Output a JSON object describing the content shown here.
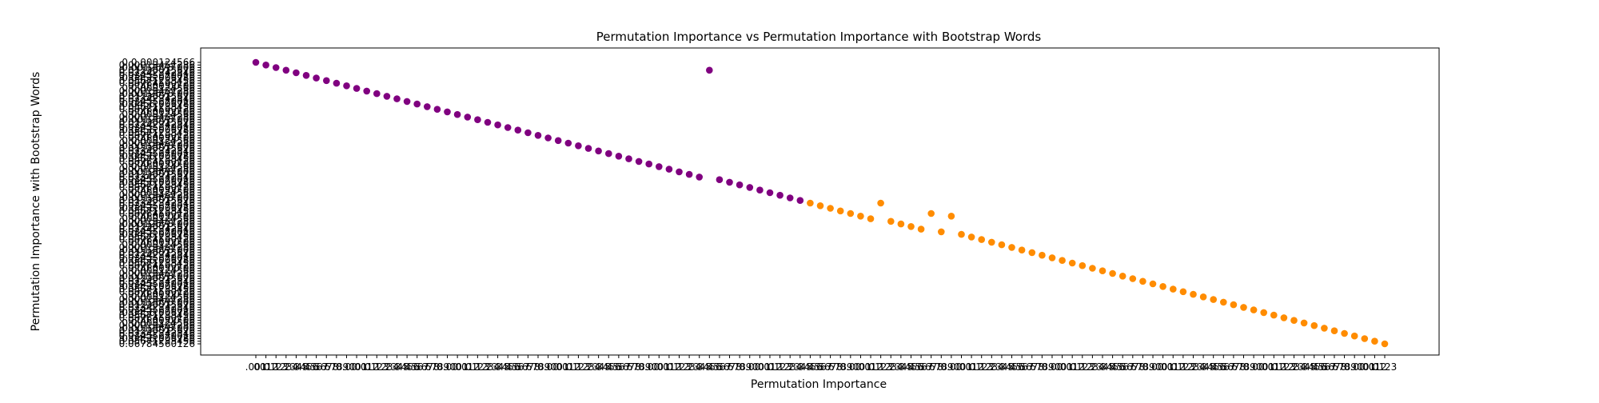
{
  "figure": {
    "title": "Permutation Importance vs Permutation Importance with Bootstrap Words"
  },
  "chart_data": {
    "type": "scatter",
    "title": "Permutation Importance vs Permutation Importance with Bootstrap Words",
    "xlabel": "Permutation Importance",
    "ylabel": "Permutation Importance with Bootstrap Words",
    "grid": false,
    "legend": "none",
    "x_axis": "categorical ticks; tick labels overlap into an illegible band",
    "y_axis": "categorical ticks; tick labels overlap into an illegible band",
    "series": [
      {
        "color": "#800080",
        "points": [
          {
            "x": 1,
            "y": 1
          },
          {
            "x": 2,
            "y": 2
          },
          {
            "x": 3,
            "y": 3
          },
          {
            "x": 4,
            "y": 4
          },
          {
            "x": 5,
            "y": 5
          },
          {
            "x": 6,
            "y": 6
          },
          {
            "x": 7,
            "y": 7
          },
          {
            "x": 8,
            "y": 8
          },
          {
            "x": 9,
            "y": 9
          },
          {
            "x": 10,
            "y": 10
          },
          {
            "x": 11,
            "y": 11
          },
          {
            "x": 12,
            "y": 12
          },
          {
            "x": 13,
            "y": 13
          },
          {
            "x": 14,
            "y": 14
          },
          {
            "x": 15,
            "y": 15
          },
          {
            "x": 16,
            "y": 16
          },
          {
            "x": 17,
            "y": 17
          },
          {
            "x": 18,
            "y": 18
          },
          {
            "x": 19,
            "y": 19
          },
          {
            "x": 20,
            "y": 20
          },
          {
            "x": 21,
            "y": 21
          },
          {
            "x": 22,
            "y": 22
          },
          {
            "x": 23,
            "y": 23
          },
          {
            "x": 24,
            "y": 24
          },
          {
            "x": 25,
            "y": 25
          },
          {
            "x": 26,
            "y": 26
          },
          {
            "x": 27,
            "y": 27
          },
          {
            "x": 28,
            "y": 28
          },
          {
            "x": 29,
            "y": 29
          },
          {
            "x": 30,
            "y": 30
          },
          {
            "x": 31,
            "y": 31
          },
          {
            "x": 32,
            "y": 32
          },
          {
            "x": 33,
            "y": 33
          },
          {
            "x": 34,
            "y": 34
          },
          {
            "x": 35,
            "y": 35
          },
          {
            "x": 36,
            "y": 36
          },
          {
            "x": 37,
            "y": 37
          },
          {
            "x": 38,
            "y": 38
          },
          {
            "x": 39,
            "y": 39
          },
          {
            "x": 40,
            "y": 40
          },
          {
            "x": 41,
            "y": 41
          },
          {
            "x": 42,
            "y": 42
          },
          {
            "x": 43,
            "y": 43
          },
          {
            "x": 44,
            "y": 44
          },
          {
            "x": 45,
            "y": 45
          },
          {
            "x": 46,
            "y": 4
          },
          {
            "x": 47,
            "y": 46
          },
          {
            "x": 48,
            "y": 47
          },
          {
            "x": 49,
            "y": 48
          },
          {
            "x": 50,
            "y": 49
          },
          {
            "x": 51,
            "y": 50
          },
          {
            "x": 52,
            "y": 51
          },
          {
            "x": 53,
            "y": 52
          },
          {
            "x": 54,
            "y": 53
          },
          {
            "x": 55,
            "y": 54
          }
        ]
      },
      {
        "color": "#ff8c00",
        "points": [
          {
            "x": 56,
            "y": 55
          },
          {
            "x": 57,
            "y": 56
          },
          {
            "x": 58,
            "y": 57
          },
          {
            "x": 59,
            "y": 58
          },
          {
            "x": 60,
            "y": 59
          },
          {
            "x": 61,
            "y": 60
          },
          {
            "x": 62,
            "y": 61
          },
          {
            "x": 63,
            "y": 55
          },
          {
            "x": 64,
            "y": 62
          },
          {
            "x": 65,
            "y": 63
          },
          {
            "x": 66,
            "y": 64
          },
          {
            "x": 67,
            "y": 65
          },
          {
            "x": 68,
            "y": 59
          },
          {
            "x": 69,
            "y": 66
          },
          {
            "x": 70,
            "y": 60
          },
          {
            "x": 71,
            "y": 67
          },
          {
            "x": 72,
            "y": 68
          },
          {
            "x": 73,
            "y": 69
          },
          {
            "x": 74,
            "y": 70
          },
          {
            "x": 75,
            "y": 71
          },
          {
            "x": 76,
            "y": 72
          },
          {
            "x": 77,
            "y": 73
          },
          {
            "x": 78,
            "y": 74
          },
          {
            "x": 79,
            "y": 75
          },
          {
            "x": 80,
            "y": 76
          },
          {
            "x": 81,
            "y": 77
          },
          {
            "x": 82,
            "y": 78
          },
          {
            "x": 83,
            "y": 79
          },
          {
            "x": 84,
            "y": 80
          },
          {
            "x": 85,
            "y": 81
          },
          {
            "x": 86,
            "y": 82
          },
          {
            "x": 87,
            "y": 83
          },
          {
            "x": 88,
            "y": 84
          },
          {
            "x": 89,
            "y": 85
          },
          {
            "x": 90,
            "y": 86
          },
          {
            "x": 91,
            "y": 87
          },
          {
            "x": 92,
            "y": 88
          },
          {
            "x": 93,
            "y": 89
          },
          {
            "x": 94,
            "y": 90
          },
          {
            "x": 95,
            "y": 91
          },
          {
            "x": 96,
            "y": 92
          },
          {
            "x": 97,
            "y": 93
          },
          {
            "x": 98,
            "y": 94
          },
          {
            "x": 99,
            "y": 95
          },
          {
            "x": 100,
            "y": 96
          },
          {
            "x": 101,
            "y": 97
          },
          {
            "x": 102,
            "y": 98
          },
          {
            "x": 103,
            "y": 99
          },
          {
            "x": 104,
            "y": 100
          },
          {
            "x": 105,
            "y": 101
          },
          {
            "x": 106,
            "y": 102
          },
          {
            "x": 107,
            "y": 103
          },
          {
            "x": 108,
            "y": 104
          },
          {
            "x": 109,
            "y": 105
          },
          {
            "x": 110,
            "y": 106
          },
          {
            "x": 111,
            "y": 107
          },
          {
            "x": 112,
            "y": 108
          },
          {
            "x": 113,
            "y": 109
          }
        ]
      }
    ]
  }
}
